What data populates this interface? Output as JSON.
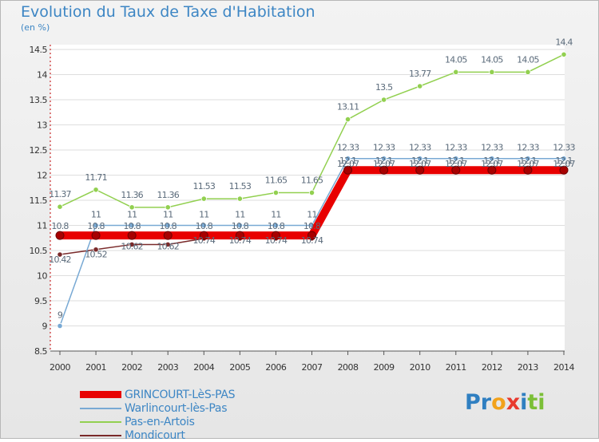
{
  "header": {
    "title": "Evolution du Taux de Taxe d'Habitation",
    "subtitle": "(en %)"
  },
  "logo": {
    "text": "Proxiti",
    "letters": [
      {
        "ch": "P",
        "color": "#2f7fc1"
      },
      {
        "ch": "r",
        "color": "#2f7fc1"
      },
      {
        "ch": "o",
        "color": "#f2a21b"
      },
      {
        "ch": "x",
        "color": "#e8392e"
      },
      {
        "ch": "i",
        "color": "#2f7fc1"
      },
      {
        "ch": "t",
        "color": "#7bbf37"
      },
      {
        "ch": "i",
        "color": "#7bbf37"
      }
    ]
  },
  "chart_data": {
    "type": "line",
    "title": "Evolution du Taux de Taxe d'Habitation",
    "ylabel": "(en %)",
    "xlabel": "",
    "x": [
      "2000",
      "2001",
      "2002",
      "2003",
      "2004",
      "2005",
      "2006",
      "2007",
      "2008",
      "2009",
      "2010",
      "2011",
      "2012",
      "2013",
      "2014"
    ],
    "ylim": [
      8.5,
      14.5
    ],
    "yticks": [
      8.5,
      9,
      9.5,
      10,
      10.5,
      11,
      11.5,
      12,
      12.5,
      13,
      13.5,
      14,
      14.5
    ],
    "ytick_labels": [
      "8.5",
      "9",
      "9.5",
      "10",
      "10.5",
      "11",
      "11.5",
      "12",
      "12.5",
      "13",
      "13.5",
      "14",
      "14.5"
    ],
    "grid": "horizontal",
    "legend_position": "bottom-left",
    "series": [
      {
        "name": "GRINCOURT-LèS-PAS",
        "color": "#e80000",
        "values": [
          10.8,
          10.8,
          10.8,
          10.8,
          10.8,
          10.8,
          10.8,
          10.8,
          12.1,
          12.1,
          12.1,
          12.1,
          12.1,
          12.1,
          12.1
        ],
        "labels": [
          "10.8",
          "10.8",
          "10.8",
          "10.8",
          "10.8",
          "10.8",
          "10.8",
          "10.8",
          "12.1",
          "12.1",
          "12.1",
          "12.1",
          "12.1",
          "12.1",
          "12.1"
        ]
      },
      {
        "name": "Warlincourt-lès-Pas",
        "color": "#78a9d4",
        "values": [
          9,
          11,
          11,
          11,
          11,
          11,
          11,
          11,
          12.33,
          12.33,
          12.33,
          12.33,
          12.33,
          12.33,
          12.33
        ],
        "labels": [
          "9",
          "11",
          "11",
          "11",
          "11",
          "11",
          "11",
          "11",
          "12.33",
          "12.33",
          "12.33",
          "12.33",
          "12.33",
          "12.33",
          "12.33"
        ]
      },
      {
        "name": "Pas-en-Artois",
        "color": "#92d050",
        "values": [
          11.37,
          11.71,
          11.36,
          11.36,
          11.53,
          11.53,
          11.65,
          11.65,
          13.11,
          13.5,
          13.77,
          14.05,
          14.05,
          14.05,
          14.4
        ],
        "labels": [
          "11.37",
          "11.71",
          "11.36",
          "11.36",
          "11.53",
          "11.53",
          "11.65",
          "11.65",
          "13.11",
          "13.5",
          "13.77",
          "14.05",
          "14.05",
          "14.05",
          "14.4"
        ]
      },
      {
        "name": "Mondicourt",
        "color": "#7a2a2a",
        "values": [
          10.42,
          10.52,
          10.62,
          10.62,
          10.74,
          10.74,
          10.74,
          10.74,
          12.07,
          12.07,
          12.07,
          12.07,
          12.07,
          12.07,
          12.07
        ],
        "labels": [
          "10.42",
          "10.52",
          "10.62",
          "10.62",
          "10.74",
          "10.74",
          "10.74",
          "10.74",
          "12.07",
          "12.07",
          "12.07",
          "12.07",
          "12.07",
          "12.07",
          "12.07"
        ]
      }
    ]
  }
}
